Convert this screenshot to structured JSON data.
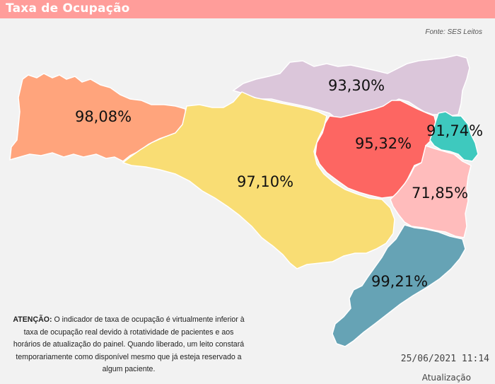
{
  "header": {
    "title": "Taxa de Ocupação"
  },
  "source": "Fonte: SES Leitos",
  "regions": [
    {
      "value": "98,08%",
      "color": "#ffa47c"
    },
    {
      "value": "93,30%",
      "color": "#dbc6da"
    },
    {
      "value": "95,32%",
      "color": "#fd6662"
    },
    {
      "value": "91,74%",
      "color": "#3ec9be"
    },
    {
      "value": "97,10%",
      "color": "#f9dd74"
    },
    {
      "value": "71,85%",
      "color": "#ffbcbc"
    },
    {
      "value": "99,21%",
      "color": "#66a3b5"
    }
  ],
  "notice": {
    "bold": "ATENÇÃO:",
    "text": " O indicador de taxa de ocupação é virtualmente inferior à taxa de ocupação real devido à rotatividade de pacientes e aos horários de atualização do painel.  Quando liberado, um leito constará temporariamente como disponível mesmo que já esteja reservado a algum paciente."
  },
  "timestamp": "25/06/2021 11:14",
  "update_label": "Atualização"
}
